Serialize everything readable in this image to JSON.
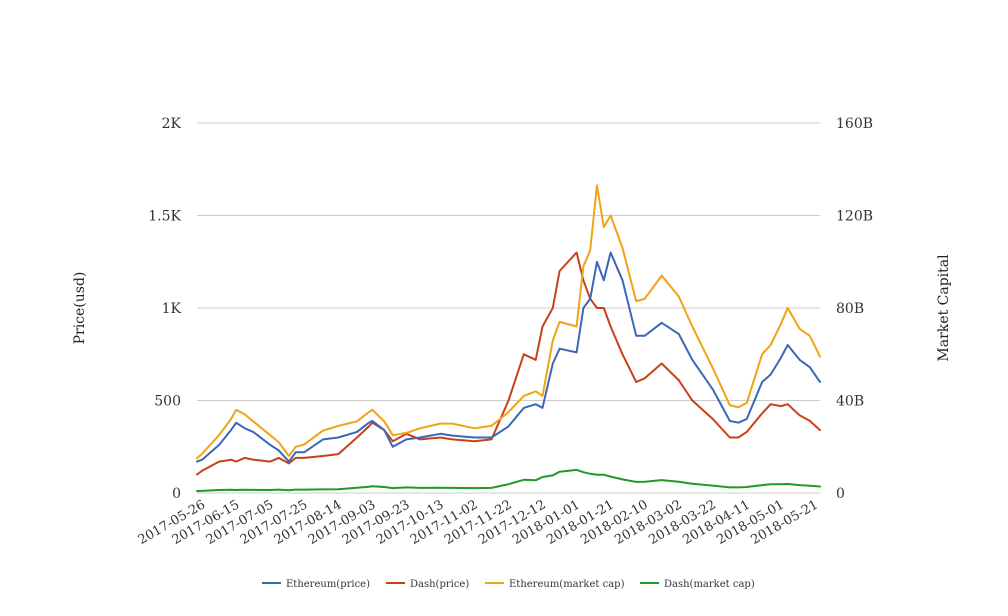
{
  "chart_data": {
    "type": "line",
    "title": "",
    "ylabel_left": "Price(usd)",
    "ylabel_right": "Market Capital",
    "ylim_left": [
      0,
      2000
    ],
    "ylim_right": [
      0,
      160000000000
    ],
    "y_ticks_left": [
      "0",
      "500",
      "1K",
      "1.5K",
      "2K"
    ],
    "y_ticks_right": [
      "0",
      "40B",
      "80B",
      "120B",
      "160B"
    ],
    "x_tick_labels": [
      "2017-05-26",
      "2017-06-15",
      "2017-07-05",
      "2017-07-25",
      "2017-08-14",
      "2017-09-03",
      "2017-09-23",
      "2017-10-13",
      "2017-11-02",
      "2017-11-22",
      "2017-12-12",
      "2018-01-01",
      "2018-01-21",
      "2018-02-10",
      "2018-03-02",
      "2018-03-22",
      "2018-04-11",
      "2018-05-01",
      "2018-05-21"
    ],
    "grid": true,
    "legend_position": "bottom",
    "x_dates": [
      "2017-05-23",
      "2017-05-26",
      "2017-06-05",
      "2017-06-12",
      "2017-06-15",
      "2017-06-20",
      "2017-06-25",
      "2017-07-05",
      "2017-07-10",
      "2017-07-16",
      "2017-07-20",
      "2017-07-25",
      "2017-08-05",
      "2017-08-14",
      "2017-08-25",
      "2017-09-01",
      "2017-09-03",
      "2017-09-10",
      "2017-09-15",
      "2017-09-23",
      "2017-10-01",
      "2017-10-13",
      "2017-10-20",
      "2017-11-02",
      "2017-11-12",
      "2017-11-22",
      "2017-12-01",
      "2017-12-08",
      "2017-12-12",
      "2017-12-18",
      "2017-12-22",
      "2018-01-01",
      "2018-01-05",
      "2018-01-09",
      "2018-01-13",
      "2018-01-17",
      "2018-01-21",
      "2018-01-28",
      "2018-02-05",
      "2018-02-10",
      "2018-02-20",
      "2018-03-02",
      "2018-03-10",
      "2018-03-22",
      "2018-04-01",
      "2018-04-06",
      "2018-04-11",
      "2018-04-20",
      "2018-04-25",
      "2018-05-01",
      "2018-05-05",
      "2018-05-12",
      "2018-05-18",
      "2018-05-24"
    ],
    "series": [
      {
        "name": "Ethereum(price)",
        "axis": "left",
        "color": "#3a67b8",
        "values": [
          170,
          180,
          260,
          340,
          380,
          350,
          330,
          260,
          230,
          170,
          220,
          220,
          290,
          300,
          330,
          380,
          390,
          340,
          250,
          290,
          300,
          320,
          310,
          300,
          300,
          360,
          460,
          480,
          460,
          700,
          780,
          760,
          1000,
          1050,
          1250,
          1150,
          1300,
          1150,
          850,
          850,
          920,
          860,
          720,
          560,
          390,
          380,
          400,
          600,
          640,
          730,
          800,
          720,
          680,
          600
        ]
      },
      {
        "name": "Dash(price)",
        "axis": "left",
        "color": "#c8401a",
        "values": [
          100,
          120,
          170,
          180,
          170,
          190,
          180,
          170,
          190,
          160,
          190,
          190,
          200,
          210,
          300,
          360,
          380,
          340,
          280,
          320,
          290,
          300,
          290,
          280,
          290,
          500,
          750,
          720,
          900,
          1000,
          1200,
          1300,
          1150,
          1050,
          1000,
          1000,
          900,
          750,
          600,
          620,
          700,
          610,
          500,
          400,
          300,
          300,
          330,
          430,
          480,
          470,
          480,
          420,
          390,
          340
        ]
      },
      {
        "name": "Ethereum(market cap)",
        "axis": "right",
        "color": "#f0a316",
        "values": [
          15000000000,
          17000000000,
          25000000000,
          32000000000,
          36000000000,
          34000000000,
          31000000000,
          25000000000,
          22000000000,
          16000000000,
          20000000000,
          21000000000,
          27000000000,
          29000000000,
          31000000000,
          35000000000,
          36000000000,
          31000000000,
          25000000000,
          26000000000,
          28000000000,
          30000000000,
          30000000000,
          28000000000,
          29000000000,
          35000000000,
          42000000000,
          44000000000,
          42000000000,
          66000000000,
          74000000000,
          72000000000,
          98000000000,
          105000000000,
          133000000000,
          115000000000,
          120000000000,
          106000000000,
          83000000000,
          84000000000,
          94000000000,
          85000000000,
          72000000000,
          54000000000,
          38000000000,
          37000000000,
          39000000000,
          60000000000,
          64000000000,
          73000000000,
          80000000000,
          71000000000,
          68000000000,
          59000000000
        ]
      },
      {
        "name": "Dash(market cap)",
        "axis": "right",
        "color": "#1f9a2a",
        "values": [
          800000000,
          900000000,
          1300000000,
          1400000000,
          1300000000,
          1400000000,
          1350000000,
          1300000000,
          1450000000,
          1200000000,
          1450000000,
          1450000000,
          1550000000,
          1600000000,
          2300000000,
          2700000000,
          2900000000,
          2600000000,
          2100000000,
          2400000000,
          2200000000,
          2300000000,
          2200000000,
          2100000000,
          2200000000,
          3800000000,
          5700000000,
          5500000000,
          6900000000,
          7600000000,
          9200000000,
          10000000000,
          9000000000,
          8300000000,
          7900000000,
          7900000000,
          7100000000,
          5900000000,
          4800000000,
          4900000000,
          5600000000,
          4900000000,
          4000000000,
          3200000000,
          2400000000,
          2400000000,
          2600000000,
          3400000000,
          3800000000,
          3800000000,
          3900000000,
          3400000000,
          3100000000,
          2800000000
        ]
      }
    ]
  }
}
